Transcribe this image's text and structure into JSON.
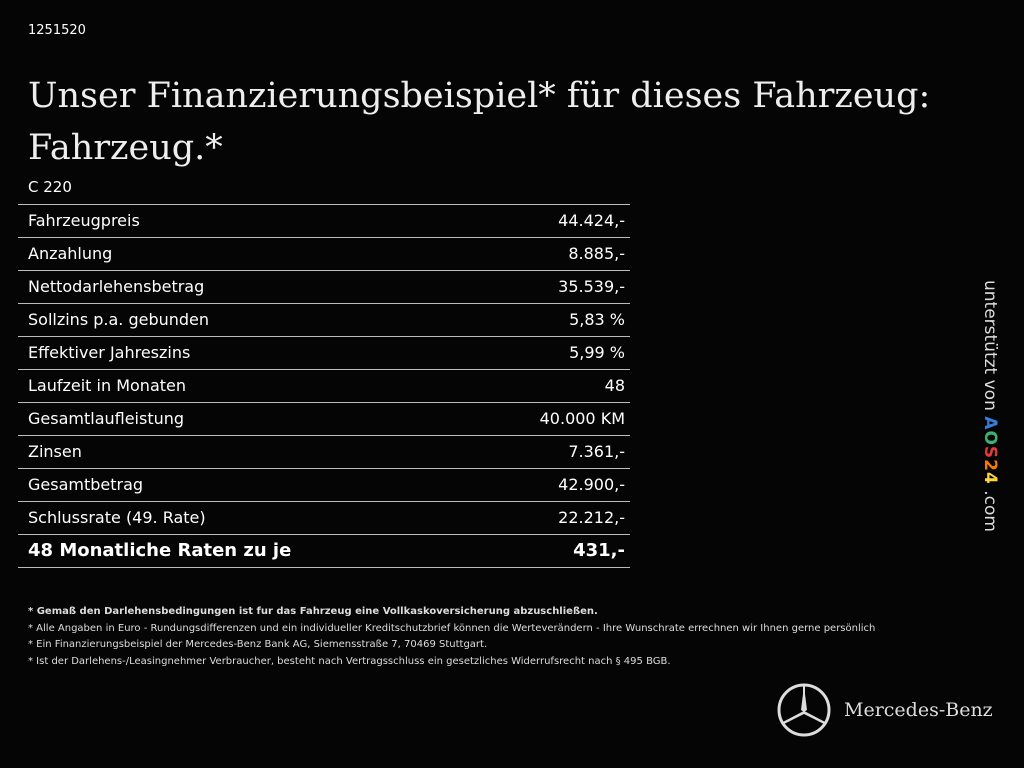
{
  "id": "1251520",
  "title": "Unser Finanzierungsbeispiel* für dieses Fahrzeug: Fahrzeug.*",
  "model": "C 220",
  "rows": [
    {
      "label": "Fahrzeugpreis",
      "value": "44.424,-"
    },
    {
      "label": "Anzahlung",
      "value": "8.885,-"
    },
    {
      "label": "Nettodarlehensbetrag",
      "value": "35.539,-"
    },
    {
      "label": "Sollzins p.a. gebunden",
      "value": "5,83 %"
    },
    {
      "label": "Effektiver Jahreszins",
      "value": "5,99 %"
    },
    {
      "label": "Laufzeit in Monaten",
      "value": "48"
    },
    {
      "label": "Gesamtlaufleistung",
      "value": "40.000 KM"
    },
    {
      "label": "Zinsen",
      "value": "7.361,-"
    },
    {
      "label": "Gesamtbetrag",
      "value": "42.900,-"
    },
    {
      "label": "Schlussrate (49. Rate)",
      "value": "22.212,-"
    },
    {
      "label": "48 Monatliche Raten zu je",
      "value": "431,-"
    }
  ],
  "notes": [
    "* Gemaß den Darlehensbedingungen ist fur das Fahrzeug eine Vollkaskoversicherung abzuschließen.",
    "* Alle Angaben in Euro - Rundungsdifferenzen und ein individueller Kreditschutzbrief können die Werteverändern - Ihre Wunschrate errechnen wir Ihnen gerne persönlich",
    "* Ein Finanzierungsbeispiel der Mercedes-Benz Bank AG, Siemensstraße 7, 70469 Stuttgart.",
    "* Ist der Darlehens-/Leasingnehmer Verbraucher, besteht nach Vertragsschluss ein gesetzliches Widerrufsrecht nach § 495 BGB."
  ],
  "side": {
    "prefix": "unterstützt von ",
    "logo": "AOS24",
    "suffix": " .com",
    "logo_colors": [
      "#3a7bd5",
      "#3cb371",
      "#e53935",
      "#f57c00",
      "#fdd835"
    ]
  },
  "brand": "Mercedes-Benz"
}
